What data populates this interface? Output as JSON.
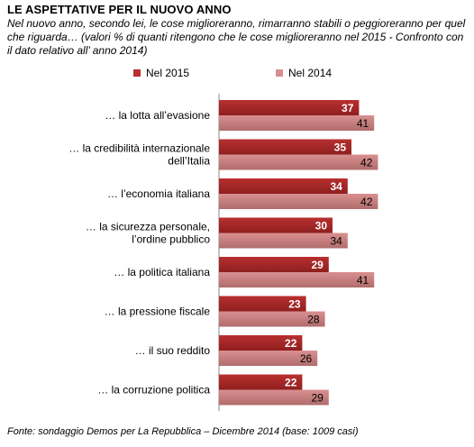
{
  "title": "LE ASPETTATIVE  PER IL NUOVO ANNO",
  "subtitle": "Nel nuovo anno, secondo lei, le cose miglioreranno, rimarranno stabili o peggioreranno per quel che riguarda… (valori % di quanti ritengono che le cose miglioreranno nel 2015 - Confronto con il dato relativo all’ anno 2014)",
  "source": "Fonte: sondaggio Demos per La Repubblica – Dicembre 2014 (base: 1009 casi)",
  "colors": {
    "nel_2015": "#b8302f",
    "nel_2014": "#d98f8f"
  },
  "chart_data": {
    "type": "bar",
    "orientation": "horizontal",
    "categories": [
      [
        "… la lotta all’evasione"
      ],
      [
        "… la credibilità internazionale",
        "dell’Italia"
      ],
      [
        "… l’economia italiana"
      ],
      [
        "… la sicurezza personale,",
        "l’ordine pubblico"
      ],
      [
        "… la politica italiana"
      ],
      [
        "… la pressione fiscale"
      ],
      [
        "… il suo reddito"
      ],
      [
        "… la corruzione  politica"
      ]
    ],
    "series": [
      {
        "name": "Nel 2015",
        "values": [
          37,
          35,
          34,
          30,
          29,
          23,
          22,
          22
        ]
      },
      {
        "name": "Nel 2014",
        "values": [
          41,
          42,
          42,
          34,
          41,
          28,
          26,
          29
        ]
      }
    ],
    "grid": false,
    "legend_position": "top",
    "xlim": [
      0,
      45
    ]
  }
}
